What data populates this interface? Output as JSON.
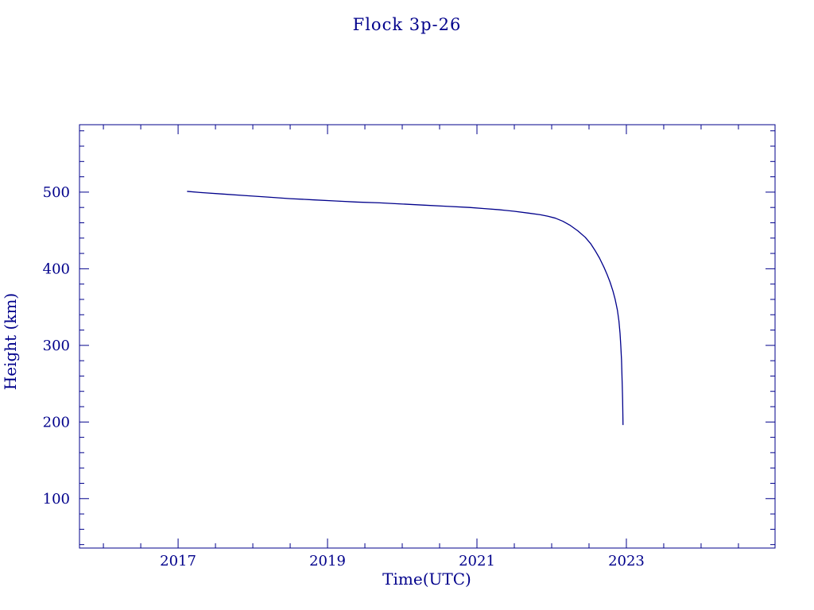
{
  "page": {
    "background": "#ffffff"
  },
  "chart_data": {
    "type": "line",
    "title": "Flock 3p-26",
    "xlabel": "Time(UTC)",
    "ylabel": "Height (km)",
    "line_color": "#00008B",
    "axis_color": "#00008B",
    "text_color": "#00008B",
    "grid": false,
    "legend": false,
    "xlim": [
      2015.68,
      2024.99
    ],
    "ylim": [
      35.5,
      588
    ],
    "xticks": [
      2017,
      2019,
      2021,
      2023
    ],
    "xtick_labels": [
      "2017",
      "2019",
      "2021",
      "2023"
    ],
    "xtick_minor_interval": 0.5,
    "yticks": [
      100,
      200,
      300,
      400,
      500
    ],
    "ytick_labels": [
      "100",
      "200",
      "300",
      "400",
      "500"
    ],
    "ytick_minor_interval": 20,
    "series": [
      {
        "name": "Flock 3p-26 height",
        "x": [
          2017.12,
          2017.3,
          2017.6,
          2017.9,
          2018.2,
          2018.5,
          2018.8,
          2019.1,
          2019.4,
          2019.7,
          2020.0,
          2020.3,
          2020.6,
          2020.9,
          2021.1,
          2021.3,
          2021.5,
          2021.7,
          2021.85,
          2021.95,
          2022.05,
          2022.15,
          2022.25,
          2022.35,
          2022.45,
          2022.52,
          2022.58,
          2022.64,
          2022.7,
          2022.74,
          2022.78,
          2022.82,
          2022.85,
          2022.88,
          2022.9,
          2022.915,
          2022.925,
          2022.935,
          2022.94,
          2022.945,
          2022.95,
          2022.953,
          2022.955
        ],
        "y": [
          501,
          499.5,
          497.5,
          495.5,
          493.5,
          491.5,
          490,
          488.5,
          487,
          486,
          484.5,
          483,
          481.5,
          480,
          478.5,
          477,
          475,
          472.5,
          470.5,
          468.5,
          466,
          462,
          456.5,
          449.5,
          441,
          433,
          424,
          414,
          402,
          393,
          383,
          371,
          360,
          346,
          332,
          316,
          300,
          281,
          264,
          247,
          228,
          210,
          196
        ]
      }
    ]
  }
}
